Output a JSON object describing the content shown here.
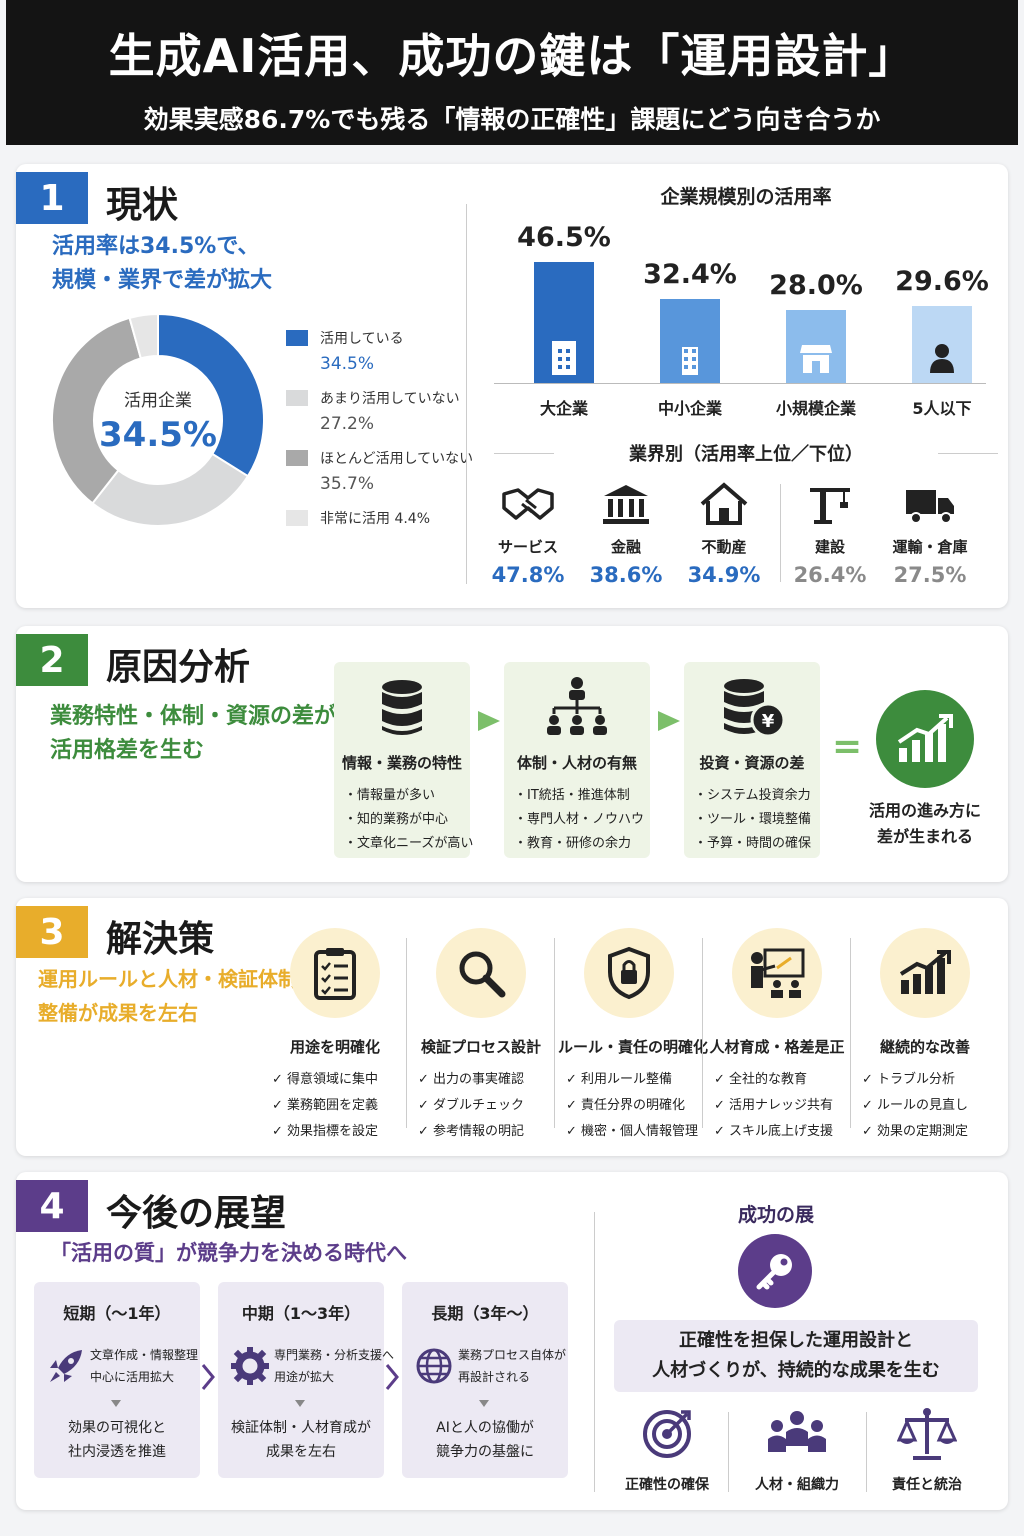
{
  "header": {
    "title": "生成AI活用、成功の鍵は「運用設計」",
    "subtitle": "効果実感86.7%でも残る「情報の正確性」課題にどう向き合うか"
  },
  "colors": {
    "blue": "#2a6bbf",
    "green": "#3d8c3d",
    "yellow": "#e8ad2b",
    "purple": "#5c3d8a",
    "grey": "#8a8a8a"
  },
  "s1": {
    "num": "1",
    "title": "現状",
    "lead1": "活用率は34.5%で、",
    "lead2": "規模・業界で差が拡大",
    "donut_center_label": "活用企業",
    "donut_center_value": "34.5%",
    "legend": [
      {
        "label": "活用している",
        "value": "34.5%"
      },
      {
        "label": "あまり活用していない",
        "value": "27.2%"
      },
      {
        "label": "ほとんど活用していない",
        "value": "35.7%"
      },
      {
        "label": "非常に活用 4.4%",
        "value": ""
      }
    ],
    "bar_title": "企業規模別の活用率",
    "industry_title": "業界別（活用率上位／下位）",
    "industries": [
      {
        "name": "サービス",
        "value": "47.8%",
        "icon": "handshake-icon"
      },
      {
        "name": "金融",
        "value": "38.6%",
        "icon": "bank-icon"
      },
      {
        "name": "不動産",
        "value": "34.9%",
        "icon": "house-icon"
      },
      {
        "name": "建設",
        "value": "26.4%",
        "icon": "crane-icon"
      },
      {
        "name": "運輸・倉庫",
        "value": "27.5%",
        "icon": "truck-icon"
      }
    ]
  },
  "chart_data": [
    {
      "type": "pie",
      "title": "",
      "categories": [
        "活用している",
        "あまり活用していない",
        "ほとんど活用していない",
        "非常に活用"
      ],
      "values": [
        34.5,
        27.2,
        35.7,
        4.4
      ],
      "colors": [
        "#2a6bbf",
        "#d9dadb",
        "#a9a9a9",
        "#e6e6e6"
      ]
    },
    {
      "type": "bar",
      "title": "企業規模別の活用率",
      "categories": [
        "大企業",
        "中小企業",
        "小規模企業",
        "5人以下"
      ],
      "values": [
        46.5,
        32.4,
        28.0,
        29.6
      ],
      "labels": [
        "46.5%",
        "32.4%",
        "28.0%",
        "29.6%"
      ],
      "colors": [
        "#2a6bbf",
        "#5896db",
        "#8cbcec",
        "#bcd8f4"
      ],
      "ylim": [
        0,
        50
      ]
    }
  ],
  "s2": {
    "num": "2",
    "title": "原因分析",
    "lead1": "業務特性・体制・資源の差が",
    "lead2": "活用格差を生む",
    "causes": [
      {
        "title": "情報・業務の特性",
        "items": [
          "・情報量が多い",
          "・知的業務が中心",
          "・文章化ニーズが高い"
        ]
      },
      {
        "title": "体制・人材の有無",
        "items": [
          "・IT統括・推進体制",
          "・専門人材・ノウハウ",
          "・教育・研修の余力"
        ]
      },
      {
        "title": "投資・資源の差",
        "items": [
          "・システム投資余力",
          "・ツール・環境整備",
          "・予算・時間の確保"
        ]
      }
    ],
    "equals": "=",
    "result1": "活用の進み方に",
    "result2": "差が生まれる"
  },
  "s3": {
    "num": "3",
    "title": "解決策",
    "lead1": "運用ルールと人材・検証体制の",
    "lead2": "整備が成果を左右",
    "solutions": [
      {
        "title": "用途を明確化",
        "items": [
          "✓ 得意領域に集中",
          "✓ 業務範囲を定義",
          "✓ 効果指標を設定"
        ]
      },
      {
        "title": "検証プロセス設計",
        "items": [
          "✓ 出力の事実確認",
          "✓ ダブルチェック",
          "✓ 参考情報の明記"
        ]
      },
      {
        "title": "ルール・責任の明確化",
        "items": [
          "✓ 利用ルール整備",
          "✓ 責任分界の明確化",
          "✓ 機密・個人情報管理"
        ]
      },
      {
        "title": "人材育成・格差是正",
        "items": [
          "✓ 全社的な教育",
          "✓ 活用ナレッジ共有",
          "✓ スキル底上げ支援"
        ]
      },
      {
        "title": "継続的な改善",
        "items": [
          "✓ トラブル分析",
          "✓ ルールの見直し",
          "✓ 効果の定期測定"
        ]
      }
    ]
  },
  "s4": {
    "num": "4",
    "title": "今後の展望",
    "lead": "「活用の質」が競争力を決める時代へ",
    "terms": [
      {
        "title": "短期（〜1年）",
        "desc1": "文章作成・情報整理",
        "desc2": "中心に活用拡大",
        "res1": "効果の可視化と",
        "res2": "社内浸透を推進"
      },
      {
        "title": "中期（1〜3年）",
        "desc1": "専門業務・分析支援へ",
        "desc2": "用途が拡大",
        "res1": "検証体制・人材育成が",
        "res2": "成果を左右"
      },
      {
        "title": "長期（3年〜）",
        "desc1": "業務プロセス自体が",
        "desc2": "再設計される",
        "res1": "AIと人の協働が",
        "res2": "競争力の基盤に"
      }
    ],
    "key_title": "成功の展",
    "key_msg1": "正確性を担保した運用設計と",
    "key_msg2": "人材づくりが、持続的な成果を生む",
    "keys": [
      {
        "label": "正確性の確保"
      },
      {
        "label": "人材・組織力"
      },
      {
        "label": "責任と統治"
      }
    ]
  }
}
